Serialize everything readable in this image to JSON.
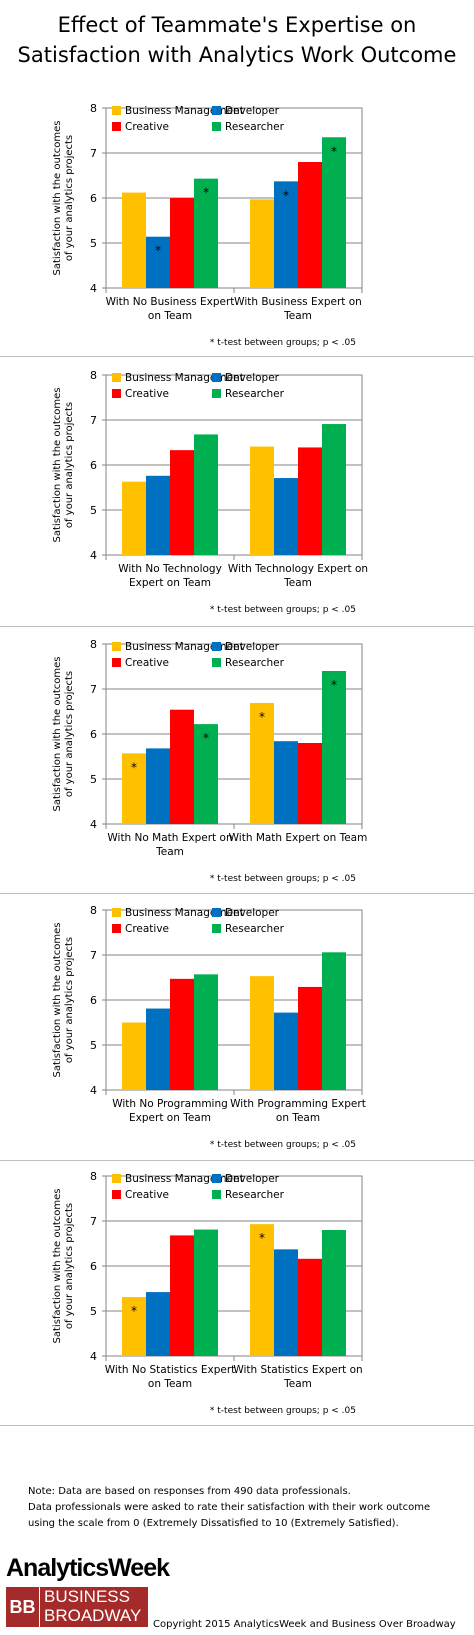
{
  "title": {
    "line1": "Effect of Teammate's Expertise on",
    "line2": "Satisfaction with Analytics Work Outcome"
  },
  "colors": {
    "Business Management": "#FFC000",
    "Developer": "#0070C0",
    "Creative": "#FF0000",
    "Researcher": "#00B050"
  },
  "chart_data": [
    {
      "type": "bar",
      "categories": [
        "With No Business Expert on Team",
        "With Business Expert on Team"
      ],
      "category_lines": [
        [
          "With No Business Expert",
          "on Team"
        ],
        [
          "With Business Expert on",
          "Team"
        ]
      ],
      "series": [
        {
          "name": "Business Management",
          "values": [
            6.12,
            5.97
          ]
        },
        {
          "name": "Developer",
          "values": [
            5.14,
            6.37
          ]
        },
        {
          "name": "Creative",
          "values": [
            6.0,
            6.8
          ]
        },
        {
          "name": "Researcher",
          "values": [
            6.43,
            7.35
          ]
        }
      ],
      "significance": [
        [
          false,
          true,
          false,
          true
        ],
        [
          false,
          true,
          false,
          true
        ]
      ],
      "ylabel_lines": [
        "Satisfaction with the outcomes",
        "of your analytics projects"
      ],
      "ylim": [
        4,
        8
      ],
      "yticks": [
        4,
        5,
        6,
        7,
        8
      ],
      "grid": true,
      "legend": "top",
      "footnote": "* t-test between groups; p < .05"
    },
    {
      "type": "bar",
      "categories": [
        "With No Technology Expert on Team",
        "With Technology Expert on Team"
      ],
      "category_lines": [
        [
          "With No Technology",
          "Expert on Team"
        ],
        [
          "With Technology Expert on",
          "Team"
        ]
      ],
      "series": [
        {
          "name": "Business Management",
          "values": [
            5.63,
            6.41
          ]
        },
        {
          "name": "Developer",
          "values": [
            5.76,
            5.71
          ]
        },
        {
          "name": "Creative",
          "values": [
            6.33,
            6.39
          ]
        },
        {
          "name": "Researcher",
          "values": [
            6.68,
            6.91
          ]
        }
      ],
      "significance": [
        [
          false,
          false,
          false,
          false
        ],
        [
          false,
          false,
          false,
          false
        ]
      ],
      "ylabel_lines": [
        "Satisfaction with the outcomes",
        "of your analytics projects"
      ],
      "ylim": [
        4,
        8
      ],
      "yticks": [
        4,
        5,
        6,
        7,
        8
      ],
      "grid": true,
      "legend": "top",
      "footnote": "* t-test between groups; p < .05"
    },
    {
      "type": "bar",
      "categories": [
        "With No Math Expert on Team",
        "With Math Expert on Team"
      ],
      "category_lines": [
        [
          "With No Math Expert on",
          "Team"
        ],
        [
          "With Math Expert on Team"
        ]
      ],
      "series": [
        {
          "name": "Business Management",
          "values": [
            5.57,
            6.69
          ]
        },
        {
          "name": "Developer",
          "values": [
            5.68,
            5.84
          ]
        },
        {
          "name": "Creative",
          "values": [
            6.54,
            5.8
          ]
        },
        {
          "name": "Researcher",
          "values": [
            6.22,
            7.4
          ]
        }
      ],
      "significance": [
        [
          true,
          false,
          false,
          true
        ],
        [
          true,
          false,
          false,
          true
        ]
      ],
      "ylabel_lines": [
        "Satisfaction with the outcomes",
        "of your analytics projects"
      ],
      "ylim": [
        4,
        8
      ],
      "yticks": [
        4,
        5,
        6,
        7,
        8
      ],
      "grid": true,
      "legend": "top",
      "footnote": "* t-test between groups; p < .05"
    },
    {
      "type": "bar",
      "categories": [
        "With No Programming Expert on Team",
        "With Programming Expert on Team"
      ],
      "category_lines": [
        [
          "With No Programming",
          "Expert on Team"
        ],
        [
          "With Programming Expert",
          "on Team"
        ]
      ],
      "series": [
        {
          "name": "Business Management",
          "values": [
            5.5,
            6.53
          ]
        },
        {
          "name": "Developer",
          "values": [
            5.81,
            5.72
          ]
        },
        {
          "name": "Creative",
          "values": [
            6.47,
            6.29
          ]
        },
        {
          "name": "Researcher",
          "values": [
            6.57,
            7.06
          ]
        }
      ],
      "significance": [
        [
          false,
          false,
          false,
          false
        ],
        [
          false,
          false,
          false,
          false
        ]
      ],
      "ylabel_lines": [
        "Satisfaction with the outcomes",
        "of your analytics projects"
      ],
      "ylim": [
        4,
        8
      ],
      "yticks": [
        4,
        5,
        6,
        7,
        8
      ],
      "grid": true,
      "legend": "top",
      "footnote": "* t-test between groups; p < .05"
    },
    {
      "type": "bar",
      "categories": [
        "With No Statistics Expert on Team",
        "With Statistics Expert on Team"
      ],
      "category_lines": [
        [
          "With No Statistics Expert",
          "on Team"
        ],
        [
          "With Statistics Expert on",
          "Team"
        ]
      ],
      "series": [
        {
          "name": "Business Management",
          "values": [
            5.31,
            6.93
          ]
        },
        {
          "name": "Developer",
          "values": [
            5.42,
            6.37
          ]
        },
        {
          "name": "Creative",
          "values": [
            6.68,
            6.16
          ]
        },
        {
          "name": "Researcher",
          "values": [
            6.81,
            6.8
          ]
        }
      ],
      "significance": [
        [
          true,
          false,
          false,
          false
        ],
        [
          true,
          false,
          false,
          false
        ]
      ],
      "ylabel_lines": [
        "Satisfaction with the outcomes",
        "of your analytics projects"
      ],
      "ylim": [
        4,
        8
      ],
      "yticks": [
        4,
        5,
        6,
        7,
        8
      ],
      "grid": true,
      "legend": "top",
      "footnote": "* t-test between groups; p < .05"
    }
  ],
  "note": {
    "line1": "Note: Data are based on responses from 490 data professionals.",
    "line2": "Data professionals were asked to rate their satisfaction with their work outcome",
    "line3": "using the scale from 0 (Extremely Dissatisfied to 10 (Extremely Satisfied)."
  },
  "branding": {
    "analytics_week": "AnalyticsWeek",
    "logo_letters": "BB",
    "bob_line1": "BUSINESS",
    "bob_line2": "BROADWAY",
    "copyright": "Copyright 2015 AnalyticsWeek and Business Over Broadway"
  }
}
